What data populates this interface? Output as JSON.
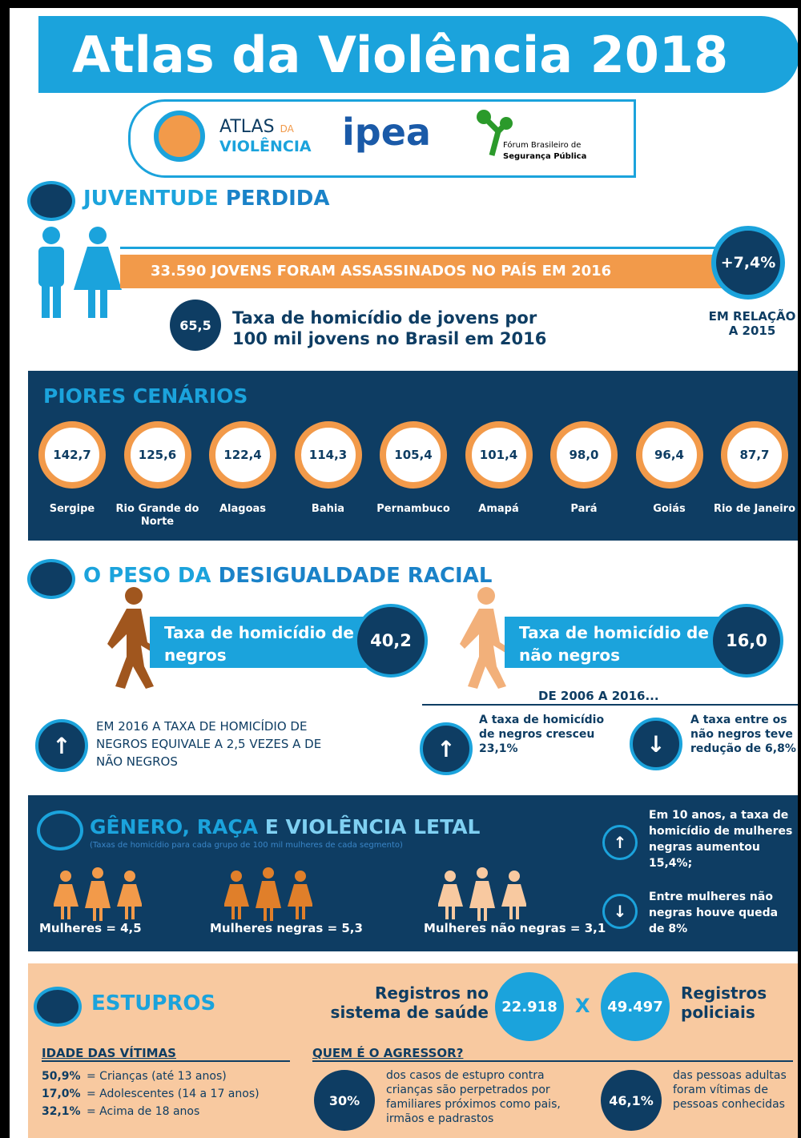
{
  "header": {
    "title": "Atlas da Violência 2018"
  },
  "logos": {
    "atlas": "ATLAS",
    "atlas_da": "DA",
    "atlas_violencia": "VIOLÊNCIA",
    "ipea": "ipea",
    "forum_1": "Fórum Brasileiro de",
    "forum_2": "Segurança Pública"
  },
  "juventude": {
    "title_1": "JUVENTUDE",
    "title_2": "PERDIDA",
    "banner": "33.590 JOVENS FORAM ASSASSINADOS NO PAÍS EM 2016",
    "change": "+7,4%",
    "change_note_1": "EM RELAÇÃO",
    "change_note_2": "A 2015",
    "rate": "65,5",
    "rate_text_1": "Taxa de homicídio de jovens por",
    "rate_text_2": "100 mil jovens no Brasil em 2016"
  },
  "piores": {
    "title": "PIORES CENÁRIOS",
    "states": [
      {
        "value": "142,7",
        "name": "Sergipe"
      },
      {
        "value": "125,6",
        "name": "Rio Grande do Norte"
      },
      {
        "value": "122,4",
        "name": "Alagoas"
      },
      {
        "value": "114,3",
        "name": "Bahia"
      },
      {
        "value": "105,4",
        "name": "Pernambuco"
      },
      {
        "value": "101,4",
        "name": "Amapá"
      },
      {
        "value": "98,0",
        "name": "Pará"
      },
      {
        "value": "96,4",
        "name": "Goiás"
      },
      {
        "value": "87,7",
        "name": "Rio de Janeiro"
      }
    ]
  },
  "racial": {
    "title_1": "O PESO DA",
    "title_2": "DESIGUALDADE RACIAL",
    "negros_label": "Taxa de homicídio de negros",
    "negros_value": "40,2",
    "nao_negros_label": "Taxa de homicídio de não negros",
    "nao_negros_value": "16,0",
    "note": "EM 2016 A TAXA DE HOMICÍDIO DE NEGROS EQUIVALE A 2,5 VEZES A DE NÃO NEGROS",
    "period": "DE 2006 A 2016...",
    "trend_negros": "A taxa de homicídio de negros cresceu 23,1%",
    "trend_nao_negros": "A taxa entre os não negros teve redução de 6,8%"
  },
  "genero": {
    "title_1": "GÊNERO, RAÇA",
    "title_2": "E VIOLÊNCIA LETAL",
    "subtitle": "(Taxas de homicídio para cada grupo de 100 mil mulheres de cada segmento)",
    "groups": [
      "Mulheres = 4,5",
      "Mulheres negras = 5,3",
      "Mulheres não negras = 3,1"
    ],
    "note_up": "Em 10 anos, a taxa de homicídio de mulheres negras aumentou 15,4%;",
    "note_down": "Entre mulheres não negras houve queda de 8%"
  },
  "estupros": {
    "title": "ESTUPROS",
    "saude_label": "Registros no sistema de saúde",
    "saude_value": "22.918",
    "versus": "X",
    "policia_value": "49.497",
    "policia_label": "Registros policiais",
    "idade_title": "IDADE DAS VÍTIMAS",
    "idade": [
      {
        "pct": "50,9%",
        "label": "= Crianças (até 13 anos)"
      },
      {
        "pct": "17,0%",
        "label": "= Adolescentes (14 a 17 anos)"
      },
      {
        "pct": "32,1%",
        "label": "= Acima de 18 anos"
      }
    ],
    "agressor_title": "QUEM É O AGRESSOR?",
    "agressor": [
      {
        "pct": "30%",
        "text": "dos casos de estupro contra crianças são perpetrados por familiares próximos como pais, irmãos e padrastos"
      },
      {
        "pct": "46,1%",
        "text": "das pessoas adultas foram vítimas de pessoas conhecidas"
      }
    ]
  }
}
